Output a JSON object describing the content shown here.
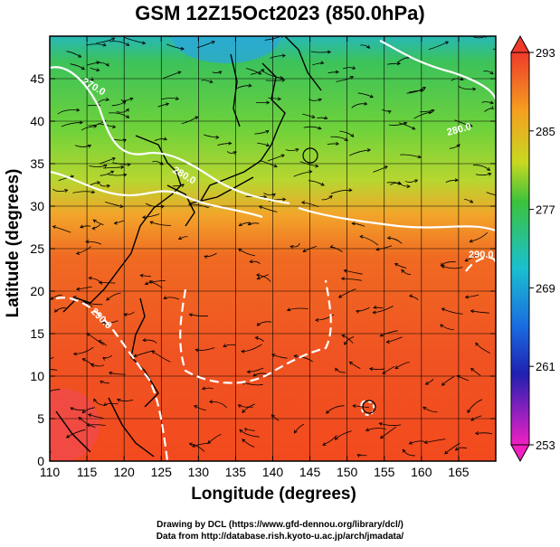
{
  "title": "GSM 12Z15Oct2023 (850.0hPa)",
  "xlabel": "Longitude (degrees)",
  "ylabel": "Latitude  (degrees)",
  "x_ticks": [
    "110",
    "115",
    "120",
    "125",
    "130",
    "135",
    "140",
    "145",
    "150",
    "155",
    "160",
    "165"
  ],
  "y_ticks": [
    "0",
    "5",
    "10",
    "15",
    "20",
    "25",
    "30",
    "35",
    "40",
    "45"
  ],
  "colorbar": {
    "min": 253,
    "max": 293,
    "ticks": [
      "293",
      "285",
      "277",
      "269",
      "261",
      "253"
    ]
  },
  "contour_labels": [
    "270.0",
    "280.0",
    "290.0",
    "290.0",
    "280.0"
  ],
  "credits": {
    "line1": "Drawing by DCL (https://www.gfd-dennou.org/library/dcl/)",
    "line2": "Data from http://database.rish.kyoto-u.ac.jp/arch/jmadata/"
  },
  "colors": {
    "warm": "#f25a1e",
    "mid": "#8fd22b",
    "cool": "#3fb54a",
    "cold": "#29b8d4"
  }
}
